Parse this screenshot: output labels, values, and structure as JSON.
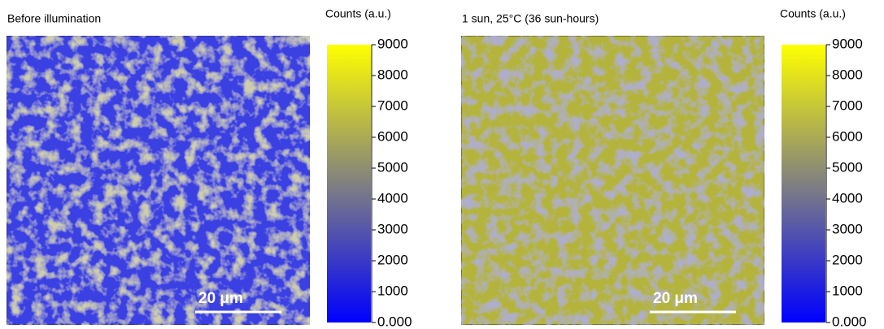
{
  "chart_data": [
    {
      "type": "heatmap",
      "title": "Before illumination",
      "colorbar_label": "Counts (a.u.)",
      "clim": [
        0,
        9000
      ],
      "cticks": [
        {
          "value": 0,
          "label": "0.000"
        },
        1000,
        2000,
        3000,
        4000,
        5000,
        6000,
        7000,
        8000,
        9000
      ],
      "colors": [
        "#0000ff",
        "#808080",
        "#ffff00"
      ],
      "scalebar_label": "20 μm"
    },
    {
      "type": "heatmap",
      "title": "1 sun, 25°C (36 sun-hours)",
      "colorbar_label": "Counts (a.u.)",
      "clim": [
        0,
        9000
      ],
      "cticks": [
        {
          "value": 0,
          "label": "0.000"
        },
        1000,
        2000,
        3000,
        4000,
        5000,
        6000,
        7000,
        8000,
        9000
      ],
      "colors": [
        "#0000ff",
        "#808080",
        "#ffff00"
      ],
      "scalebar_label": "20 μm"
    }
  ]
}
